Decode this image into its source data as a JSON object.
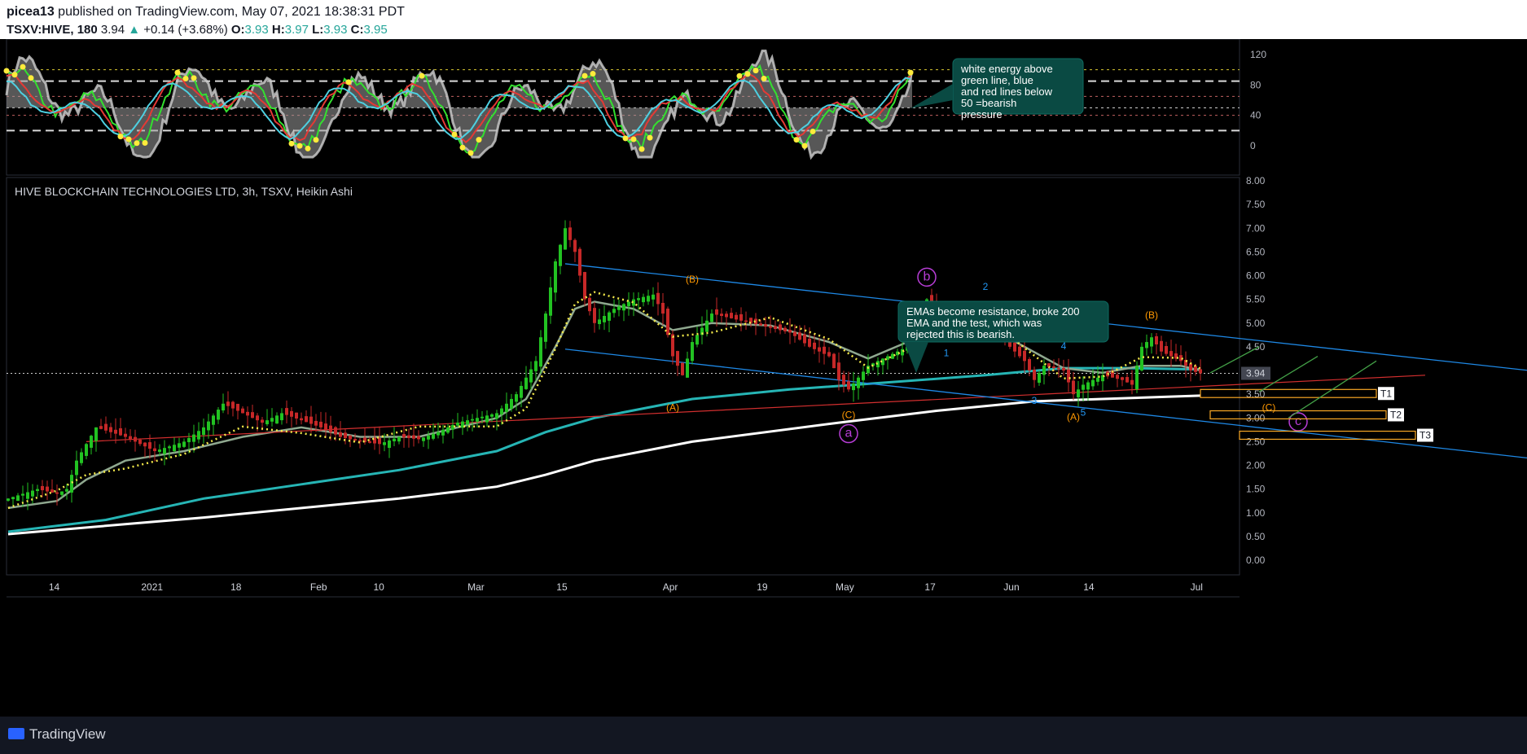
{
  "header": {
    "author": "picea13",
    "published": "published on TradingView.com, May 07, 2021 18:38:31 PDT",
    "symbol": "TSXV:HIVE, 180",
    "last": "3.94",
    "change": "+0.14 (+3.68%)",
    "o_label": "O:",
    "o": "3.93",
    "h_label": "H:",
    "h": "3.97",
    "l_label": "L:",
    "l": "3.93",
    "c_label": "C:",
    "c": "3.95"
  },
  "footer": {
    "brand": "TradingView"
  },
  "colors": {
    "up": "#26a69a",
    "candle_up": "#22c222",
    "candle_down": "#c62828",
    "trend": "#1e88e5",
    "wave_orange": "#ff9800",
    "wave_purple": "#b73dd6",
    "note_bg": "#0a4a43"
  },
  "chart_data": [
    {
      "type": "line",
      "pane": "oscillator",
      "yticks": [
        120,
        80,
        40,
        0
      ],
      "ylim": [
        -20,
        130
      ],
      "guide_levels": [
        100,
        85,
        65,
        50,
        40,
        20
      ],
      "annotation": "white energy above green line, blue and red lines below 50 =bearish pressure"
    },
    {
      "type": "candlestick",
      "pane": "price",
      "title": "HIVE BLOCKCHAIN TECHNOLOGIES LTD, 3h, TSXV, Heikin Ashi",
      "yticks": [
        "8.00",
        "7.50",
        "7.00",
        "6.50",
        "6.00",
        "5.50",
        "5.00",
        "4.50",
        "4.00",
        "3.50",
        "3.00",
        "2.50",
        "2.00",
        "1.50",
        "1.00",
        "0.50",
        "0.00"
      ],
      "ylim": [
        0,
        8
      ],
      "last_price": "3.94",
      "xticks": [
        "14",
        "2021",
        "18",
        "Feb",
        "10",
        "Mar",
        "15",
        "Apr",
        "19",
        "May",
        "17",
        "Jun",
        "14",
        "Jul"
      ],
      "close_path": [
        [
          0,
          1.3
        ],
        [
          3,
          1.5
        ],
        [
          5,
          1.4
        ],
        [
          6,
          1.5
        ],
        [
          7,
          2.1
        ],
        [
          9,
          2.8
        ],
        [
          12,
          2.6
        ],
        [
          15,
          2.3
        ],
        [
          18,
          2.5
        ],
        [
          20,
          2.8
        ],
        [
          22,
          3.3
        ],
        [
          24,
          3.1
        ],
        [
          26,
          2.9
        ],
        [
          28,
          3.1
        ],
        [
          30,
          2.95
        ],
        [
          32,
          2.8
        ],
        [
          34,
          2.6
        ],
        [
          36,
          2.5
        ],
        [
          38,
          2.45
        ],
        [
          40,
          2.6
        ],
        [
          42,
          2.55
        ],
        [
          44,
          2.7
        ],
        [
          46,
          2.9
        ],
        [
          48,
          3.0
        ],
        [
          50,
          3.1
        ],
        [
          52,
          3.5
        ],
        [
          54,
          4.2
        ],
        [
          55,
          5.2
        ],
        [
          56,
          6.3
        ],
        [
          57,
          7.0
        ],
        [
          58,
          6.5
        ],
        [
          59,
          5.5
        ],
        [
          60,
          5.0
        ],
        [
          62,
          5.3
        ],
        [
          64,
          5.5
        ],
        [
          66,
          5.6
        ],
        [
          67,
          5.2
        ],
        [
          68,
          4.3
        ],
        [
          69,
          3.9
        ],
        [
          70,
          4.6
        ],
        [
          72,
          5.2
        ],
        [
          74,
          5.1
        ],
        [
          76,
          5.0
        ],
        [
          78,
          4.9
        ],
        [
          80,
          4.8
        ],
        [
          82,
          4.5
        ],
        [
          84,
          4.3
        ],
        [
          85,
          3.8
        ],
        [
          86,
          3.6
        ],
        [
          88,
          4.1
        ],
        [
          90,
          4.3
        ],
        [
          92,
          4.5
        ],
        [
          93,
          5.0
        ],
        [
          94,
          5.5
        ],
        [
          95,
          5.2
        ],
        [
          96,
          4.8
        ],
        [
          98,
          5.0
        ],
        [
          100,
          5.1
        ],
        [
          101,
          5.0
        ],
        [
          102,
          4.6
        ],
        [
          104,
          4.2
        ],
        [
          105,
          3.8
        ],
        [
          106,
          4.1
        ],
        [
          108,
          4.0
        ],
        [
          109,
          3.5
        ],
        [
          110,
          3.7
        ],
        [
          112,
          3.9
        ],
        [
          114,
          3.8
        ],
        [
          115,
          3.7
        ],
        [
          116,
          4.5
        ],
        [
          117,
          4.7
        ],
        [
          118,
          4.4
        ],
        [
          120,
          4.2
        ],
        [
          121,
          4.0
        ],
        [
          122,
          3.94
        ]
      ],
      "ema_200": [
        [
          0,
          0.55
        ],
        [
          20,
          0.9
        ],
        [
          40,
          1.3
        ],
        [
          50,
          1.55
        ],
        [
          55,
          1.8
        ],
        [
          60,
          2.1
        ],
        [
          70,
          2.5
        ],
        [
          85,
          2.9
        ],
        [
          95,
          3.15
        ],
        [
          105,
          3.35
        ],
        [
          115,
          3.42
        ],
        [
          122,
          3.47
        ]
      ],
      "ema_100": [
        [
          0,
          0.6
        ],
        [
          10,
          0.85
        ],
        [
          20,
          1.3
        ],
        [
          30,
          1.6
        ],
        [
          40,
          1.9
        ],
        [
          50,
          2.3
        ],
        [
          55,
          2.7
        ],
        [
          60,
          3.0
        ],
        [
          70,
          3.4
        ],
        [
          80,
          3.6
        ],
        [
          90,
          3.75
        ],
        [
          100,
          3.9
        ],
        [
          108,
          4.05
        ],
        [
          115,
          4.05
        ],
        [
          122,
          4.02
        ]
      ],
      "ema_20": [
        [
          0,
          1.1
        ],
        [
          5,
          1.25
        ],
        [
          8,
          1.7
        ],
        [
          12,
          2.1
        ],
        [
          18,
          2.3
        ],
        [
          24,
          2.6
        ],
        [
          30,
          2.8
        ],
        [
          36,
          2.6
        ],
        [
          42,
          2.6
        ],
        [
          50,
          3.0
        ],
        [
          53,
          3.4
        ],
        [
          56,
          4.5
        ],
        [
          58,
          5.3
        ],
        [
          60,
          5.45
        ],
        [
          64,
          5.3
        ],
        [
          68,
          4.85
        ],
        [
          72,
          5.0
        ],
        [
          78,
          4.95
        ],
        [
          84,
          4.6
        ],
        [
          88,
          4.25
        ],
        [
          92,
          4.6
        ],
        [
          96,
          5.0
        ],
        [
          100,
          4.95
        ],
        [
          104,
          4.5
        ],
        [
          108,
          4.05
        ],
        [
          112,
          3.95
        ],
        [
          116,
          4.1
        ],
        [
          120,
          4.1
        ],
        [
          122,
          4.0
        ]
      ],
      "trend_lines": [
        {
          "from": [
            57,
            6.25
          ],
          "to": [
            160,
            3.9
          ]
        },
        {
          "from": [
            57,
            4.45
          ],
          "to": [
            160,
            2.05
          ]
        }
      ],
      "support_line": {
        "from": [
          8,
          2.5
        ],
        "to": [
          145,
          3.9
        ]
      },
      "wave_labels": [
        {
          "text": "(A)",
          "x": 68,
          "y": 3.15,
          "color": "orange"
        },
        {
          "text": "(B)",
          "x": 70,
          "y": 5.85,
          "color": "orange"
        },
        {
          "text": "(C)",
          "x": 86,
          "y": 3.0,
          "color": "orange"
        },
        {
          "text": "a",
          "x": 86,
          "y": 2.6,
          "color": "purple",
          "circle": true
        },
        {
          "text": "b",
          "x": 94,
          "y": 5.9,
          "color": "purple",
          "circle": true
        },
        {
          "text": "1",
          "x": 96,
          "y": 4.3,
          "color": "blue"
        },
        {
          "text": "2",
          "x": 100,
          "y": 5.7,
          "color": "blue"
        },
        {
          "text": "3",
          "x": 105,
          "y": 3.3,
          "color": "blue"
        },
        {
          "text": "4",
          "x": 108,
          "y": 4.45,
          "color": "blue"
        },
        {
          "text": "5",
          "x": 110,
          "y": 3.05,
          "color": "blue"
        },
        {
          "text": "(A)",
          "x": 109,
          "y": 2.95,
          "color": "orange"
        },
        {
          "text": "(B)",
          "x": 117,
          "y": 5.1,
          "color": "orange"
        },
        {
          "text": "(C)",
          "x": 129,
          "y": 3.15,
          "color": "orange"
        },
        {
          "text": "c",
          "x": 132,
          "y": 2.85,
          "color": "purple",
          "circle": true
        }
      ],
      "targets": [
        {
          "label": "T1",
          "x0": 122,
          "x1": 140,
          "y0": 3.43,
          "y1": 3.6
        },
        {
          "label": "T2",
          "x0": 123,
          "x1": 141,
          "y0": 2.98,
          "y1": 3.15
        },
        {
          "label": "T3",
          "x0": 126,
          "x1": 144,
          "y0": 2.55,
          "y1": 2.72
        }
      ],
      "annotation": "EMAs become resistance, broke 200 EMA and the test, which was rejected this is bearish."
    }
  ]
}
